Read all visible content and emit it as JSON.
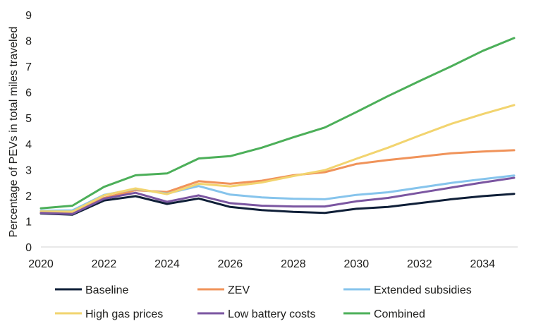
{
  "chart_data": {
    "type": "line",
    "title": "",
    "xlabel": "",
    "ylabel": "Percentage of PEVs in total miles traveled",
    "xlim": [
      2020,
      2035
    ],
    "ylim": [
      0,
      9
    ],
    "x_ticks": [
      "2020",
      "2022",
      "2024",
      "2026",
      "2028",
      "2030",
      "2032",
      "2034"
    ],
    "y_ticks": [
      "0",
      "1",
      "2",
      "3",
      "4",
      "5",
      "6",
      "7",
      "8",
      "9"
    ],
    "grid": false,
    "legend_position": "bottom",
    "x": [
      2020,
      2021,
      2022,
      2023,
      2024,
      2025,
      2026,
      2027,
      2028,
      2029,
      2030,
      2031,
      2032,
      2033,
      2034,
      2035
    ],
    "series": [
      {
        "name": "Baseline",
        "color": "#0f1f38",
        "values": [
          1.3,
          1.25,
          1.8,
          1.97,
          1.67,
          1.88,
          1.55,
          1.43,
          1.36,
          1.32,
          1.48,
          1.55,
          1.7,
          1.85,
          1.97,
          2.06
        ]
      },
      {
        "name": "ZEV",
        "color": "#f0935a",
        "values": [
          1.33,
          1.3,
          1.9,
          2.2,
          2.13,
          2.55,
          2.45,
          2.57,
          2.78,
          2.9,
          3.22,
          3.37,
          3.5,
          3.63,
          3.7,
          3.75
        ]
      },
      {
        "name": "Extended subsidies",
        "color": "#86c4ec",
        "values": [
          1.4,
          1.42,
          2.02,
          2.25,
          2.07,
          2.36,
          2.03,
          1.92,
          1.87,
          1.85,
          2.02,
          2.12,
          2.3,
          2.48,
          2.63,
          2.77
        ]
      },
      {
        "name": "High gas prices",
        "color": "#f2d46f",
        "values": [
          1.38,
          1.37,
          2.0,
          2.27,
          2.05,
          2.45,
          2.35,
          2.5,
          2.75,
          2.98,
          3.42,
          3.85,
          4.32,
          4.77,
          5.15,
          5.5
        ]
      },
      {
        "name": "Low battery costs",
        "color": "#7b56a1",
        "values": [
          1.32,
          1.28,
          1.87,
          2.1,
          1.75,
          2.0,
          1.7,
          1.6,
          1.57,
          1.57,
          1.77,
          1.9,
          2.1,
          2.3,
          2.5,
          2.68
        ]
      },
      {
        "name": "Combined",
        "color": "#4caf59",
        "values": [
          1.5,
          1.6,
          2.33,
          2.78,
          2.85,
          3.43,
          3.52,
          3.85,
          4.25,
          4.63,
          5.23,
          5.85,
          6.43,
          7.0,
          7.6,
          8.1
        ]
      }
    ]
  }
}
